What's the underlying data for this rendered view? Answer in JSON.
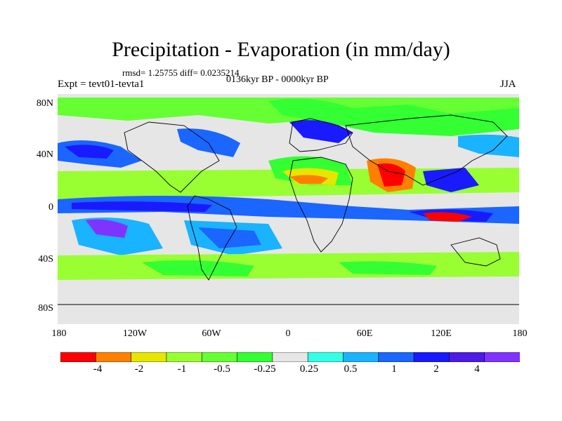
{
  "header": {
    "title": "Precipitation - Evaporation (in mm/day)",
    "stats": "rmsd= 1.25755 diff= 0.0235214",
    "periods": "0136kyr BP - 0000kyr BP",
    "experiment": "Expt = tevt01-tevta1",
    "season": "JJA"
  },
  "axes": {
    "lat_labels": [
      "80N",
      "40N",
      "0",
      "40S",
      "80S"
    ],
    "lon_labels": [
      "180",
      "120W",
      "60W",
      "0",
      "60E",
      "120E",
      "180"
    ]
  },
  "colorbar": {
    "colors": [
      "#ff0000",
      "#ff8000",
      "#e6e600",
      "#99ff33",
      "#66ff33",
      "#33ff33",
      "#e6e6e6",
      "#33ffe6",
      "#1ab3ff",
      "#1a66ff",
      "#1a1aff",
      "#4d1ae6",
      "#8033ff"
    ],
    "labels": [
      "-4",
      "-2",
      "-1",
      "-0.5",
      "-0.25",
      "0.25",
      "0.5",
      "1",
      "2",
      "4"
    ]
  }
}
